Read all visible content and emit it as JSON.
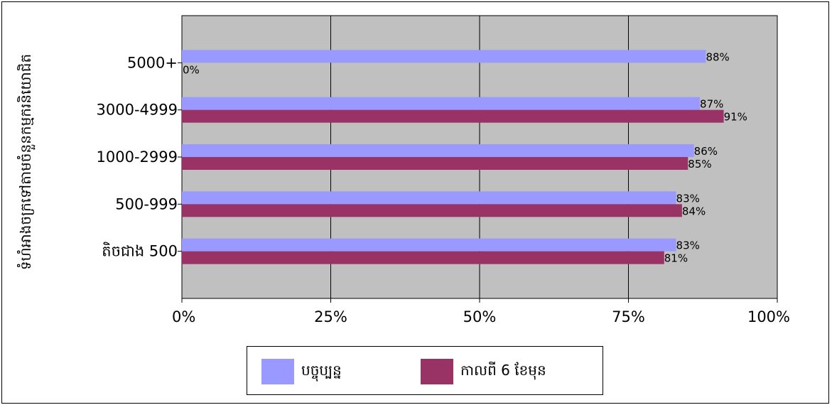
{
  "chart_data": {
    "type": "bar",
    "orientation": "horizontal",
    "categories": [
      "5000+",
      "3000-4999",
      "1000-2999",
      "500-999",
      "តិចជាង 500"
    ],
    "series": [
      {
        "name": "បច្ចុប្បន្ន",
        "color": "#9999ff",
        "values": [
          88,
          87,
          86,
          83,
          83
        ],
        "labels": [
          "88%",
          "87%",
          "86%",
          "83%",
          "83%"
        ]
      },
      {
        "name": "កាលពី 6 ខែមុន",
        "color": "#993366",
        "values": [
          0,
          91,
          85,
          84,
          81
        ],
        "labels": [
          "0%",
          "91%",
          "85%",
          "84%",
          "81%"
        ]
      }
    ],
    "ylabel": "ទំហំអាងចក្រទៅតាមចំនួនកម្មករនិយោជិត",
    "xlabel": "",
    "xlim": [
      0,
      100
    ],
    "x_ticks": [
      0,
      25,
      50,
      75,
      100
    ],
    "x_tick_labels": [
      "0%",
      "25%",
      "50%",
      "75%",
      "100%"
    ],
    "plot_background": "#c0c0c0",
    "grid": true,
    "legend_position": "bottom"
  }
}
